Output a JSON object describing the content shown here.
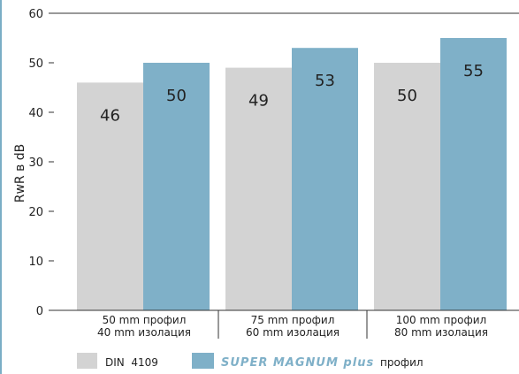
{
  "chart_data": {
    "type": "bar",
    "categories": [
      [
        "50 mm профил",
        "40 mm изолация"
      ],
      [
        "75 mm профил",
        "60 mm изолация"
      ],
      [
        "100 mm профил",
        "80 mm изолация"
      ]
    ],
    "series": [
      {
        "name": "DIN  4109",
        "values": [
          46,
          49,
          50
        ],
        "color": "#d3d3d3"
      },
      {
        "name": "SUPER MAGNUM plus профил",
        "values": [
          50,
          53,
          55
        ],
        "color": "#7fb0c8"
      }
    ],
    "ylabel": "RwR в dB",
    "ylim": [
      0,
      60
    ],
    "yticks": [
      0,
      10,
      20,
      30,
      40,
      50,
      60
    ],
    "grid": false,
    "legend": {
      "placement": "bottom",
      "items": [
        {
          "label": "DIN  4109",
          "color": "#d3d3d3"
        },
        {
          "brand": "SUPER MAGNUM plus",
          "suffix": "профил",
          "color": "#7fb0c8",
          "brand_color": "#7fb0c8"
        }
      ]
    },
    "axis_color": "#333333"
  }
}
